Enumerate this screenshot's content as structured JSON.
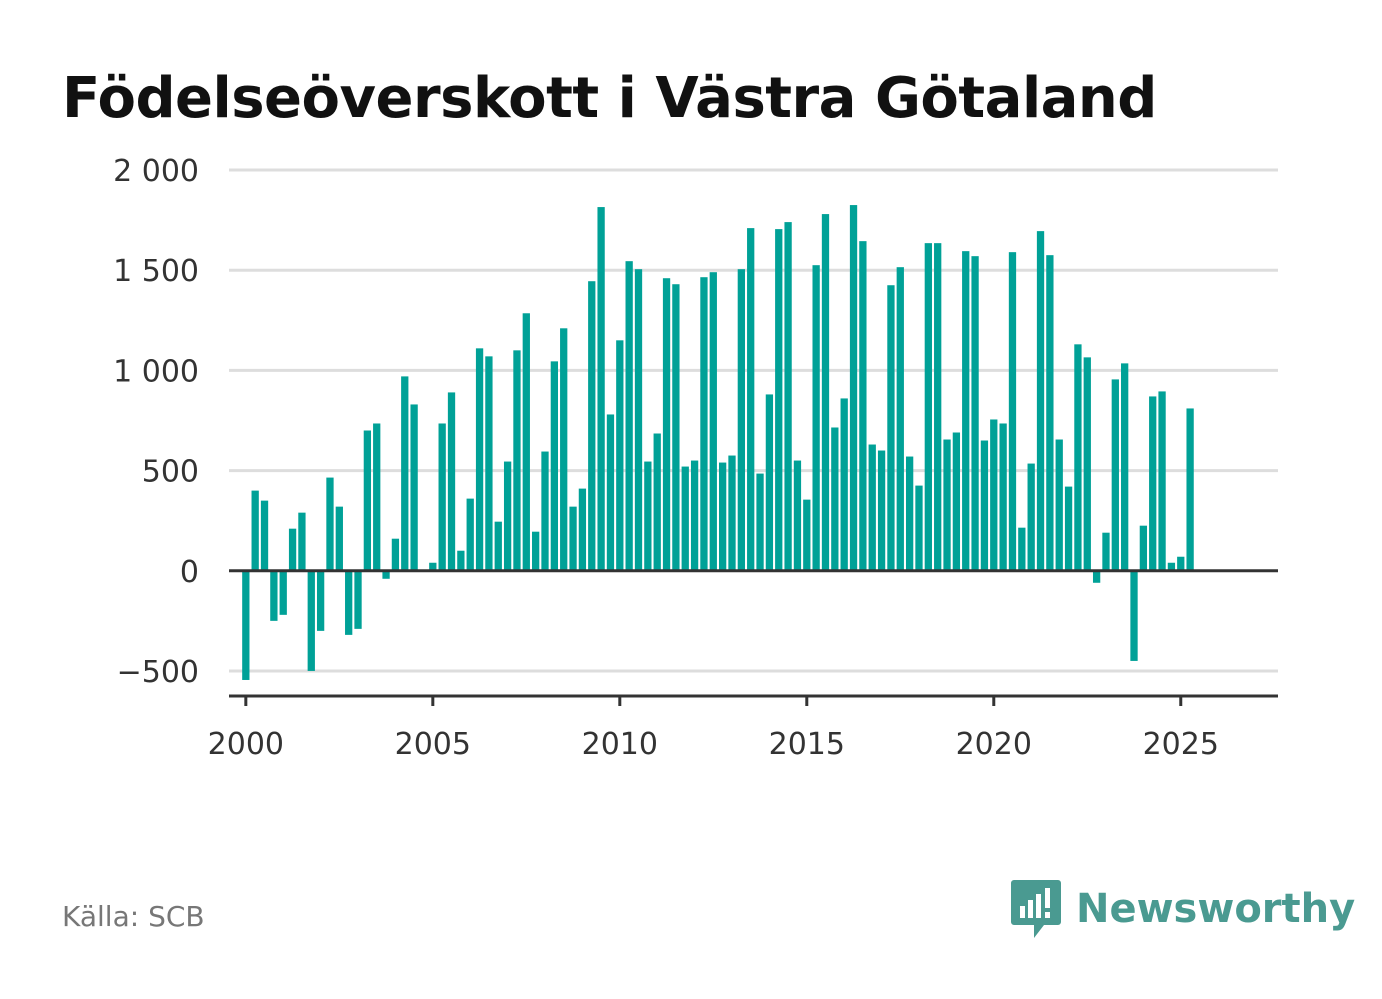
{
  "title": "Födelseöverskott i Västra Götaland",
  "source": "Källa: SCB",
  "brand": {
    "name": "Newsworthy",
    "icon": "bar-chart-speech-bubble-icon",
    "color": "#4a9a91"
  },
  "colors": {
    "bar": "#00a197",
    "grid": "#dddddd",
    "zero_line": "#333333",
    "axis_text": "#333333"
  },
  "chart_data": {
    "type": "bar",
    "title": "Födelseöverskott i Västra Götaland",
    "xlabel": "",
    "ylabel": "",
    "ylim": [
      -625,
      2000
    ],
    "xlim": [
      1999.55,
      2027.6
    ],
    "grid": true,
    "yticks": [
      {
        "value": 2000,
        "label": "2 000"
      },
      {
        "value": 1500,
        "label": "1 500"
      },
      {
        "value": 1000,
        "label": "1 000"
      },
      {
        "value": 500,
        "label": "500"
      },
      {
        "value": 0,
        "label": "0"
      },
      {
        "value": -500,
        "label": "−500"
      }
    ],
    "xticks": [
      {
        "value": 2000,
        "label": "2000"
      },
      {
        "value": 2005,
        "label": "2005"
      },
      {
        "value": 2010,
        "label": "2010"
      },
      {
        "value": 2015,
        "label": "2015"
      },
      {
        "value": 2020,
        "label": "2020"
      },
      {
        "value": 2025,
        "label": "2025"
      }
    ],
    "frequency": "quarterly",
    "categories": [
      "2000 Q1",
      "2000 Q2",
      "2000 Q3",
      "2000 Q4",
      "2001 Q1",
      "2001 Q2",
      "2001 Q3",
      "2001 Q4",
      "2002 Q1",
      "2002 Q2",
      "2002 Q3",
      "2002 Q4",
      "2003 Q1",
      "2003 Q2",
      "2003 Q3",
      "2003 Q4",
      "2004 Q1",
      "2004 Q2",
      "2004 Q3",
      "2004 Q4",
      "2005 Q1",
      "2005 Q2",
      "2005 Q3",
      "2005 Q4",
      "2006 Q1",
      "2006 Q2",
      "2006 Q3",
      "2006 Q4",
      "2007 Q1",
      "2007 Q2",
      "2007 Q3",
      "2007 Q4",
      "2008 Q1",
      "2008 Q2",
      "2008 Q3",
      "2008 Q4",
      "2009 Q1",
      "2009 Q2",
      "2009 Q3",
      "2009 Q4",
      "2010 Q1",
      "2010 Q2",
      "2010 Q3",
      "2010 Q4",
      "2011 Q1",
      "2011 Q2",
      "2011 Q3",
      "2011 Q4",
      "2012 Q1",
      "2012 Q2",
      "2012 Q3",
      "2012 Q4",
      "2013 Q1",
      "2013 Q2",
      "2013 Q3",
      "2013 Q4",
      "2014 Q1",
      "2014 Q2",
      "2014 Q3",
      "2014 Q4",
      "2015 Q1",
      "2015 Q2",
      "2015 Q3",
      "2015 Q4",
      "2016 Q1",
      "2016 Q2",
      "2016 Q3",
      "2016 Q4",
      "2017 Q1",
      "2017 Q2",
      "2017 Q3",
      "2017 Q4",
      "2018 Q1",
      "2018 Q2",
      "2018 Q3",
      "2018 Q4",
      "2019 Q1",
      "2019 Q2",
      "2019 Q3",
      "2019 Q4",
      "2020 Q1",
      "2020 Q2",
      "2020 Q3",
      "2020 Q4",
      "2021 Q1",
      "2021 Q2",
      "2021 Q3",
      "2021 Q4",
      "2022 Q1",
      "2022 Q2",
      "2022 Q3",
      "2022 Q4",
      "2023 Q1",
      "2023 Q2",
      "2023 Q3",
      "2023 Q4",
      "2024 Q1",
      "2024 Q2",
      "2024 Q3",
      "2024 Q4",
      "2025 Q1",
      "2025 Q2"
    ],
    "series": [
      {
        "values": [
          -545,
          400,
          350,
          -250,
          -220,
          210,
          290,
          -500,
          -300,
          465,
          320,
          -320,
          -290,
          700,
          735,
          -40,
          160,
          970,
          830,
          0,
          40,
          735,
          890,
          100,
          360,
          1110,
          1070,
          245,
          545,
          1100,
          1285,
          195,
          595,
          1045,
          1210,
          320,
          410,
          1445,
          1815,
          780,
          1150,
          1545,
          1505,
          545,
          685,
          1460,
          1430,
          520,
          550,
          1465,
          1490,
          540,
          575,
          1505,
          1710,
          485,
          880,
          1705,
          1740,
          550,
          355,
          1525,
          1780,
          715,
          860,
          1825,
          1645,
          630,
          600,
          1425,
          1515,
          570,
          425,
          1635,
          1635,
          655,
          690,
          1595,
          1570,
          650,
          755,
          735,
          1590,
          215,
          535,
          1695,
          1575,
          655,
          420,
          1130,
          1065,
          -60,
          190,
          955,
          1035,
          -450,
          225,
          870,
          895,
          40,
          70,
          810
        ]
      }
    ]
  }
}
